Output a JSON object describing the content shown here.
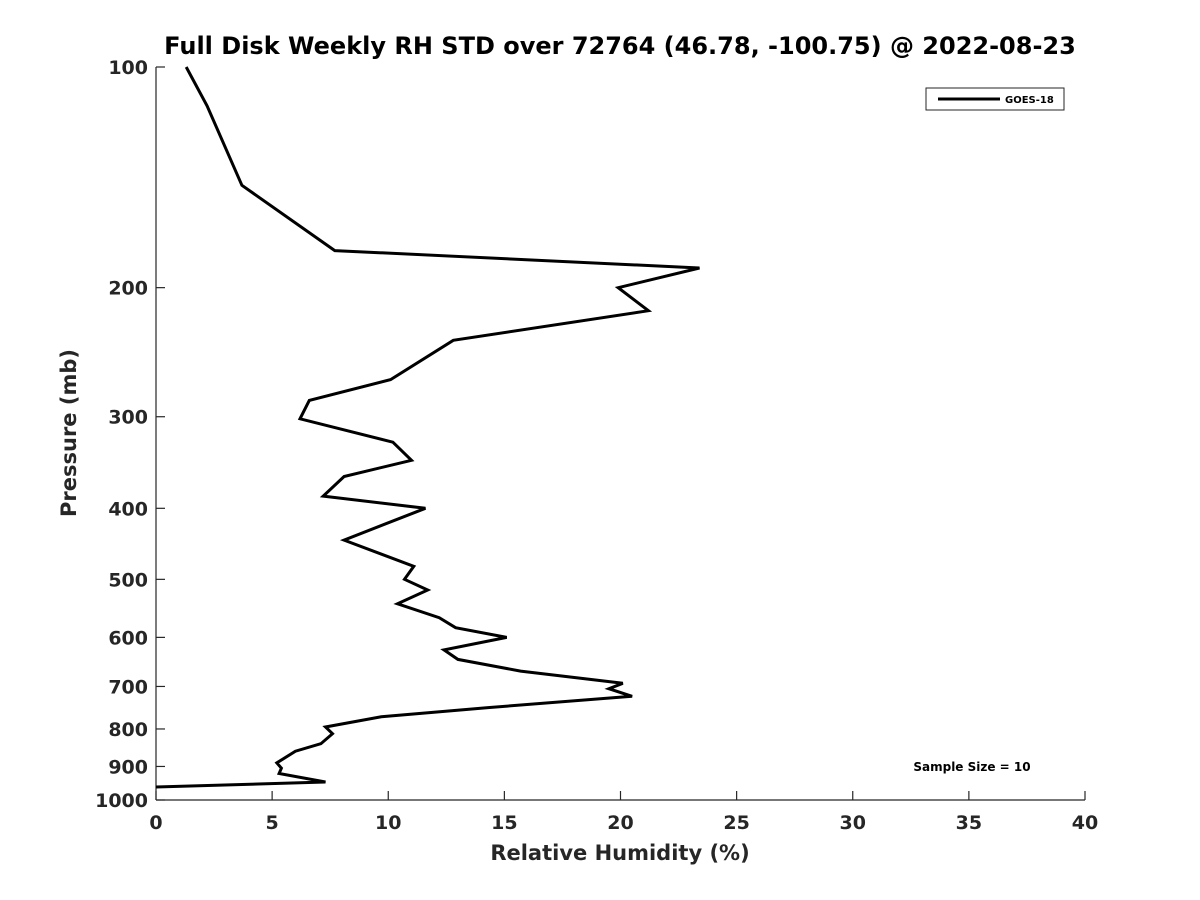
{
  "chart_data": {
    "type": "line",
    "title": "Full Disk Weekly RH STD over 72764 (46.78, -100.75) @ 2022-08-23",
    "xlabel": "Relative Humidity (%)",
    "ylabel": "Pressure (mb)",
    "xlim": [
      0,
      40
    ],
    "ylim": [
      100,
      1000
    ],
    "y_scale": "log",
    "y_reversed": true,
    "x_ticks": [
      0,
      5,
      10,
      15,
      20,
      25,
      30,
      35,
      40
    ],
    "y_ticks": [
      100,
      200,
      300,
      400,
      500,
      600,
      700,
      800,
      900,
      1000
    ],
    "grid": false,
    "legend_position": "top-right",
    "line_color": "#000000",
    "annotation": "Sample Size = 10",
    "series": [
      {
        "name": "GOES-18",
        "x": [
          1.3,
          2.2,
          3.7,
          7.7,
          23.4,
          19.9,
          21.2,
          12.8,
          10.1,
          6.6,
          6.2,
          10.2,
          11.0,
          8.1,
          7.2,
          11.6,
          8.1,
          11.1,
          10.7,
          11.7,
          10.4,
          12.2,
          12.9,
          15.1,
          12.4,
          13.0,
          15.7,
          20.1,
          19.5,
          20.5,
          14.3,
          9.7,
          7.3,
          7.6,
          7.1,
          6.0,
          5.2,
          5.4,
          5.3,
          7.3,
          0.0
        ],
        "y": [
          100,
          113,
          145,
          178,
          188,
          200,
          215,
          236,
          267,
          285,
          302,
          325,
          344,
          362,
          385,
          400,
          442,
          480,
          500,
          517,
          540,
          564,
          582,
          600,
          624,
          643,
          667,
          693,
          705,
          722,
          748,
          770,
          795,
          812,
          838,
          858,
          890,
          905,
          920,
          945,
          960
        ]
      }
    ]
  }
}
